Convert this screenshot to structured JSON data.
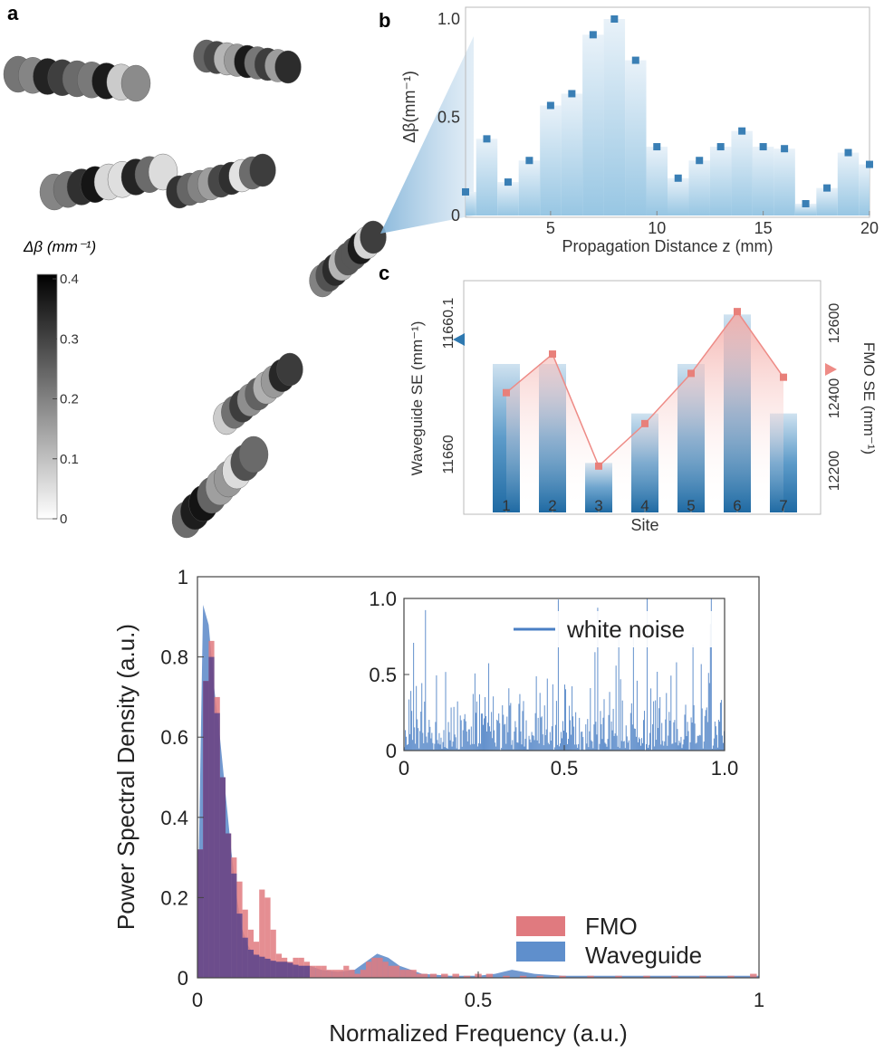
{
  "panels": {
    "a": {
      "label": "a",
      "colorbar": {
        "title": "Δβ (mm⁻¹)",
        "ticks": [
          "0.4",
          "0.3",
          "0.2",
          "0.1",
          "0"
        ],
        "min": 0,
        "max": 0.4
      }
    },
    "b": {
      "label": "b"
    },
    "c": {
      "label": "c"
    }
  },
  "chart_data": [
    {
      "id": "b",
      "type": "bar",
      "xlabel": "Propagation Distance z (mm)",
      "ylabel": "Δβ(mm⁻¹)",
      "xlim": [
        1,
        20
      ],
      "ylim": [
        0,
        1.0
      ],
      "xticks": [
        5,
        10,
        15,
        20
      ],
      "yticks": [
        0,
        0.5,
        1.0
      ],
      "ytick_labels": [
        "0",
        "0.5",
        "1.0"
      ],
      "x": [
        1,
        2,
        3,
        4,
        5,
        6,
        7,
        8,
        9,
        10,
        11,
        12,
        13,
        14,
        15,
        16,
        17,
        18,
        19,
        20
      ],
      "values": [
        0.12,
        0.39,
        0.17,
        0.28,
        0.56,
        0.62,
        0.92,
        1.0,
        0.79,
        0.35,
        0.19,
        0.28,
        0.35,
        0.43,
        0.35,
        0.34,
        0.06,
        0.14,
        0.32,
        0.26
      ],
      "colors": {
        "bar": "#b3d4e8",
        "marker": "#3a7fb5"
      }
    },
    {
      "id": "c",
      "type": "bar",
      "xlabel": "Site",
      "ylabel": "Waveguide SE (mm⁻¹)",
      "ylabel_right": "FMO SE (mm⁻¹)",
      "categories": [
        "1",
        "2",
        "3",
        "4",
        "5",
        "6",
        "7"
      ],
      "series": [
        {
          "axis": "left",
          "type": "bar",
          "values": [
            11660.1,
            11660.1,
            11659.9,
            11660.0,
            11660.1,
            11660.2,
            11660.0
          ],
          "color": "#2f79b0"
        },
        {
          "axis": "right",
          "type": "line",
          "values": [
            12410,
            12510,
            12220,
            12330,
            12460,
            12620,
            12450
          ],
          "color": "#ee8b86"
        }
      ],
      "left_ticks": [
        "11660",
        "11660.1"
      ],
      "right_ticks": [
        "12200",
        "12400",
        "12600"
      ],
      "right_ylim": [
        12100,
        12700
      ]
    },
    {
      "id": "main",
      "type": "bar",
      "xlabel": "Normalized Frequency (a.u.)",
      "ylabel": "Power Spectral Density (a.u.)",
      "xlim": [
        0,
        1
      ],
      "ylim": [
        0,
        1
      ],
      "xticks": [
        "0",
        "0.5",
        "1"
      ],
      "yticks": [
        "0",
        "0.2",
        "0.4",
        "0.6",
        "0.8",
        "1"
      ],
      "legend": {
        "position": "lower-right",
        "entries": [
          "FMO",
          "Waveguide"
        ]
      },
      "series": [
        {
          "name": "FMO",
          "color": "#e07a7f",
          "x": [
            0.005,
            0.015,
            0.025,
            0.035,
            0.045,
            0.055,
            0.065,
            0.075,
            0.085,
            0.095,
            0.105,
            0.115,
            0.125,
            0.135,
            0.145,
            0.155,
            0.165,
            0.175,
            0.185,
            0.195,
            0.205,
            0.215,
            0.225,
            0.235,
            0.245,
            0.255,
            0.265,
            0.275,
            0.285,
            0.295,
            0.305,
            0.315,
            0.325,
            0.335,
            0.345,
            0.355,
            0.365,
            0.375,
            0.385,
            0.395,
            0.405,
            0.42,
            0.44,
            0.46,
            0.48,
            0.5,
            0.52,
            0.55,
            0.58,
            0.61,
            0.65,
            0.7,
            0.75,
            0.8,
            0.85,
            0.9,
            0.95,
            0.99
          ],
          "values": [
            0.32,
            0.74,
            0.84,
            0.7,
            0.5,
            0.36,
            0.3,
            0.24,
            0.17,
            0.12,
            0.09,
            0.22,
            0.2,
            0.12,
            0.06,
            0.05,
            0.04,
            0.05,
            0.05,
            0.04,
            0.03,
            0.03,
            0.03,
            0.02,
            0.02,
            0.02,
            0.03,
            0.02,
            0.01,
            0.02,
            0.04,
            0.05,
            0.05,
            0.04,
            0.03,
            0.03,
            0.02,
            0.02,
            0.02,
            0.01,
            0.01,
            0.01,
            0.01,
            0.01,
            0.005,
            0.01,
            0.01,
            0.005,
            0.005,
            0.005,
            0.005,
            0.005,
            0.005,
            0.005,
            0.005,
            0.005,
            0.005,
            0.01
          ]
        },
        {
          "name": "Waveguide",
          "color": "#4f80c4",
          "x": [
            0.0,
            0.01,
            0.02,
            0.03,
            0.04,
            0.05,
            0.06,
            0.07,
            0.08,
            0.09,
            0.1,
            0.12,
            0.14,
            0.16,
            0.18,
            0.2,
            0.22,
            0.25,
            0.28,
            0.3,
            0.32,
            0.34,
            0.36,
            0.38,
            0.4,
            0.45,
            0.5,
            0.53,
            0.56,
            0.6,
            0.65,
            0.7,
            0.75,
            0.8,
            0.9,
            1.0
          ],
          "values": [
            0.1,
            0.93,
            0.88,
            0.72,
            0.6,
            0.46,
            0.32,
            0.2,
            0.12,
            0.08,
            0.06,
            0.05,
            0.04,
            0.04,
            0.03,
            0.03,
            0.02,
            0.015,
            0.02,
            0.04,
            0.06,
            0.05,
            0.03,
            0.02,
            0.01,
            0.005,
            0.005,
            0.01,
            0.02,
            0.01,
            0.005,
            0.005,
            0.005,
            0.005,
            0.005,
            0.005
          ]
        }
      ]
    },
    {
      "id": "inset",
      "type": "bar",
      "xlim": [
        0,
        1.0
      ],
      "ylim": [
        0,
        1.0
      ],
      "xticks": [
        "0",
        "0.5",
        "1.0"
      ],
      "yticks": [
        "0",
        "0.5",
        "1.0"
      ],
      "legend": {
        "position": "top-right",
        "entries": [
          "white noise"
        ]
      },
      "series": [
        {
          "name": "white noise",
          "color": "#4a7fc4",
          "description_values": "random uniform-spectrum bars"
        }
      ]
    }
  ]
}
